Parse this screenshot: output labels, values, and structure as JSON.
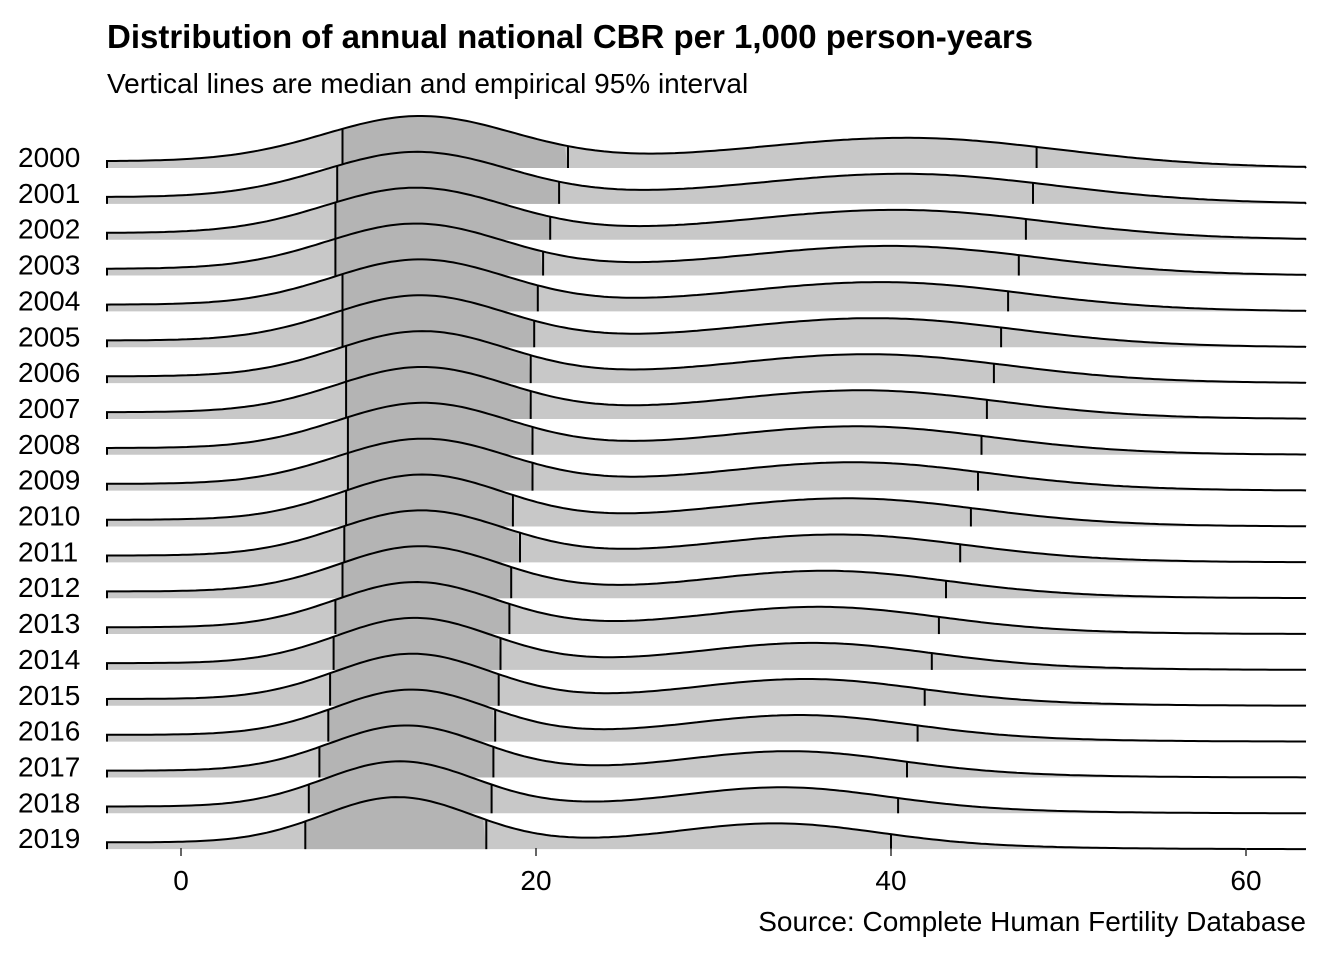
{
  "chart_data": {
    "type": "ridgeline",
    "title": "Distribution of annual national CBR per 1,000 person-years",
    "subtitle": "Vertical lines are median and empirical 95% interval",
    "caption": "Source: Complete Human Fertility Database",
    "xlabel": "",
    "ylabel": "",
    "xlim": [
      -4,
      63
    ],
    "x_ticks": [
      0,
      20,
      40,
      60
    ],
    "grid": false,
    "fill_color": "#c8c8c8",
    "central_fill_color": "#b4b4b4",
    "line_color": "#000000",
    "years": [
      "2000",
      "2001",
      "2002",
      "2003",
      "2004",
      "2005",
      "2006",
      "2007",
      "2008",
      "2009",
      "2010",
      "2011",
      "2012",
      "2013",
      "2014",
      "2015",
      "2016",
      "2017",
      "2018",
      "2019"
    ],
    "series": [
      {
        "year": "2000",
        "q025": 9.1,
        "median": 21.8,
        "q975": 48.2
      },
      {
        "year": "2001",
        "q025": 8.8,
        "median": 21.3,
        "q975": 48.0
      },
      {
        "year": "2002",
        "q025": 8.7,
        "median": 20.8,
        "q975": 47.6
      },
      {
        "year": "2003",
        "q025": 8.7,
        "median": 20.4,
        "q975": 47.2
      },
      {
        "year": "2004",
        "q025": 9.1,
        "median": 20.1,
        "q975": 46.6
      },
      {
        "year": "2005",
        "q025": 9.1,
        "median": 19.9,
        "q975": 46.2
      },
      {
        "year": "2006",
        "q025": 9.3,
        "median": 19.7,
        "q975": 45.8
      },
      {
        "year": "2007",
        "q025": 9.3,
        "median": 19.7,
        "q975": 45.4
      },
      {
        "year": "2008",
        "q025": 9.4,
        "median": 19.8,
        "q975": 45.1
      },
      {
        "year": "2009",
        "q025": 9.4,
        "median": 19.8,
        "q975": 44.9
      },
      {
        "year": "2010",
        "q025": 9.3,
        "median": 18.7,
        "q975": 44.5
      },
      {
        "year": "2011",
        "q025": 9.2,
        "median": 19.1,
        "q975": 43.9
      },
      {
        "year": "2012",
        "q025": 9.1,
        "median": 18.6,
        "q975": 43.1
      },
      {
        "year": "2013",
        "q025": 8.7,
        "median": 18.5,
        "q975": 42.7
      },
      {
        "year": "2014",
        "q025": 8.6,
        "median": 18.0,
        "q975": 42.3
      },
      {
        "year": "2015",
        "q025": 8.4,
        "median": 17.9,
        "q975": 41.9
      },
      {
        "year": "2016",
        "q025": 8.3,
        "median": 17.7,
        "q975": 41.5
      },
      {
        "year": "2017",
        "q025": 7.8,
        "median": 17.6,
        "q975": 40.9
      },
      {
        "year": "2018",
        "q025": 7.2,
        "median": 17.5,
        "q975": 40.4
      },
      {
        "year": "2019",
        "q025": 7.0,
        "median": 17.2,
        "q975": 40.0
      }
    ]
  }
}
